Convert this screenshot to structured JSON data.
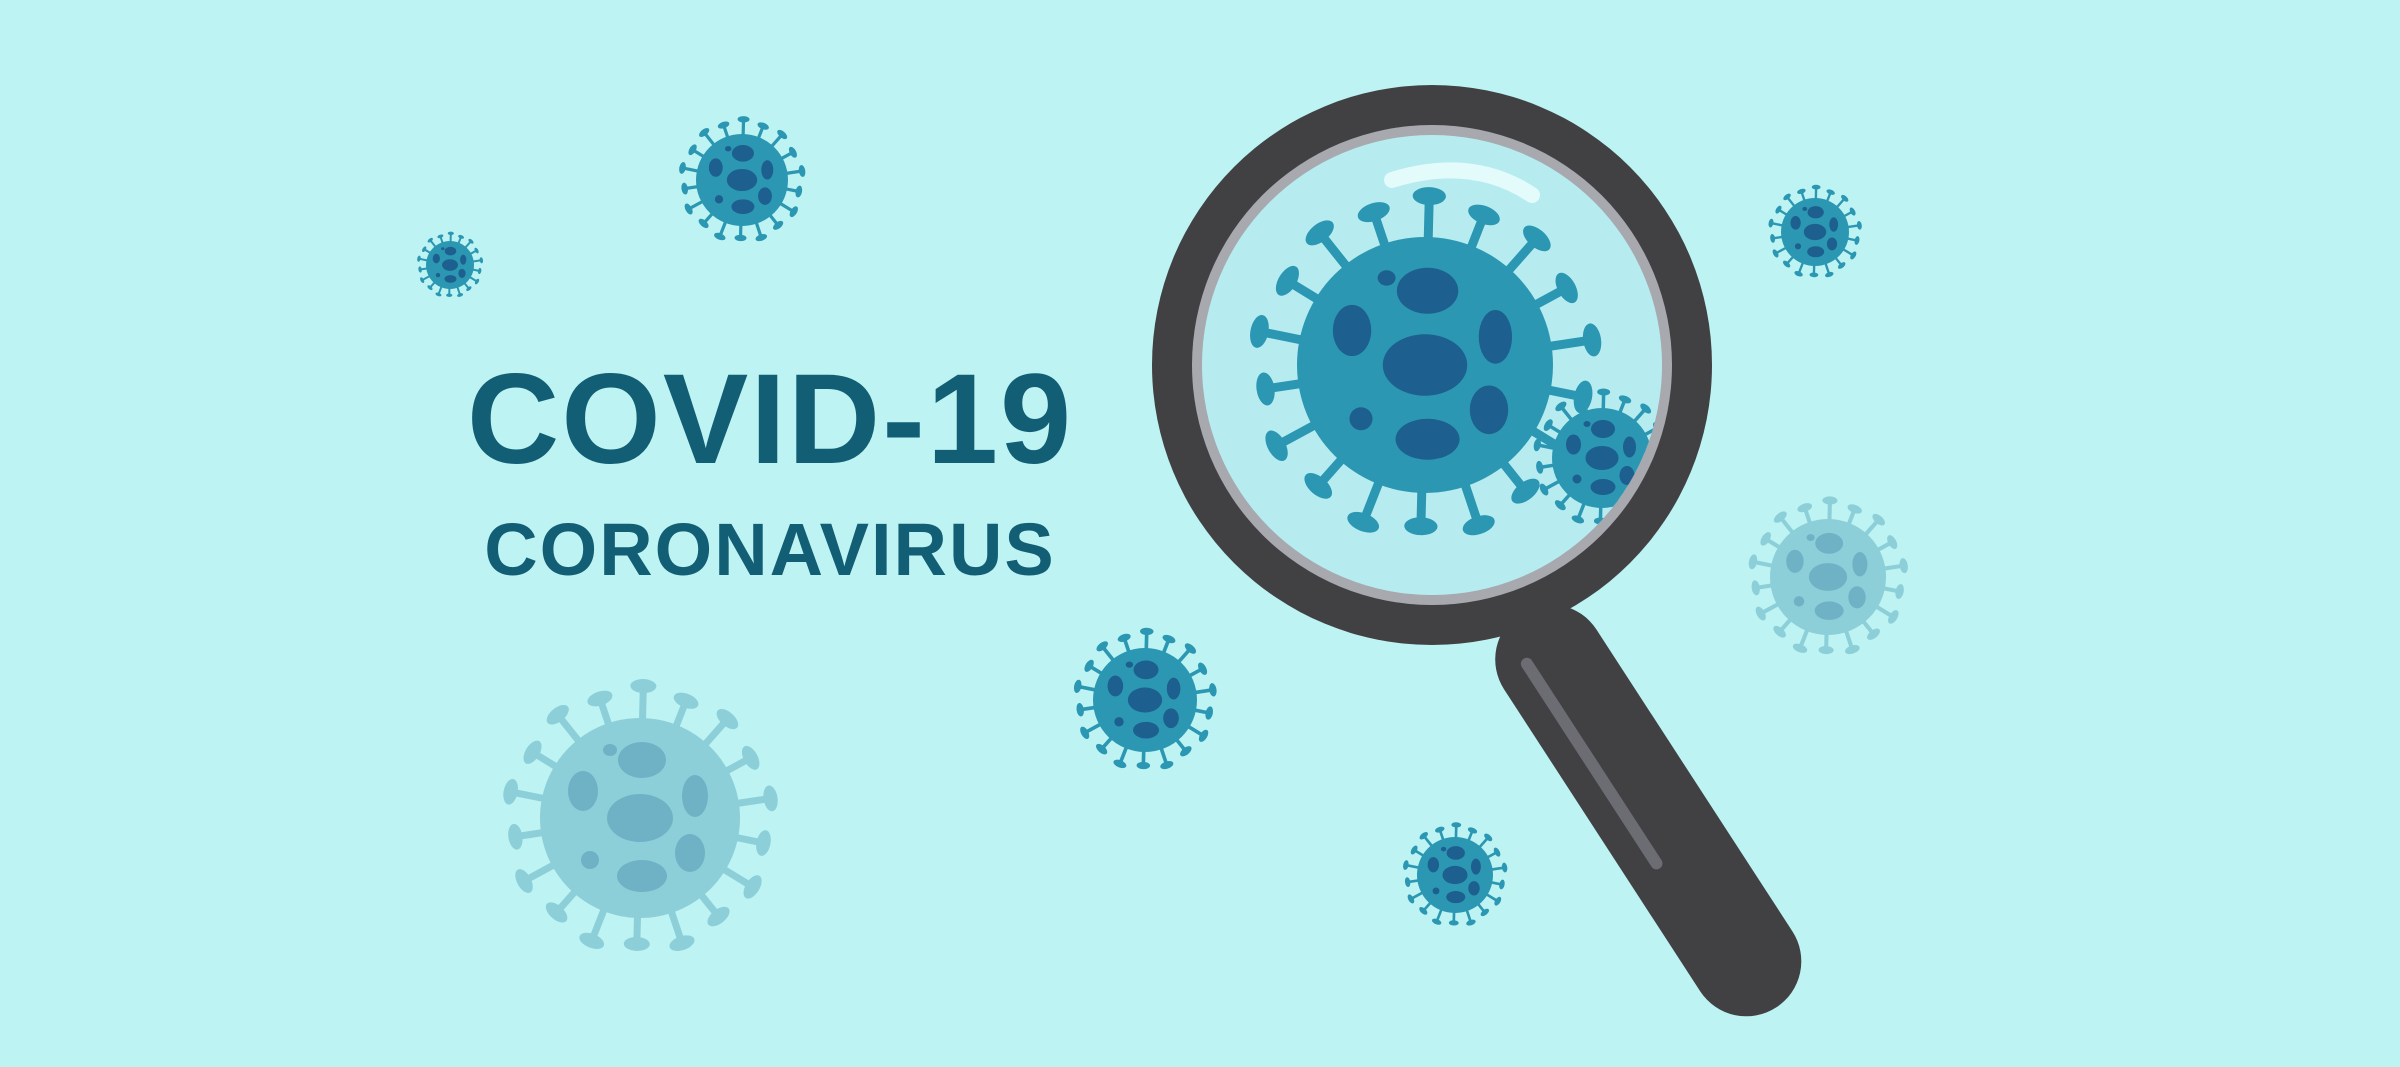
{
  "banner": {
    "title": "COVID-19",
    "subtitle": "CORONAVIRUS"
  },
  "colors": {
    "background": "#bdf3f2",
    "text": "#125e75",
    "virus_body": "#2b97b3",
    "virus_spots": "#1d5f8e",
    "virus_faded": "#8ccfd8",
    "virus_faded_spots": "#6fb2c5",
    "magnifier_frame": "#414144",
    "magnifier_lens": "#b6ecf0",
    "magnifier_rim": "#a7a9ae"
  },
  "icons": [
    "coronavirus-icon",
    "magnifying-glass-icon"
  ]
}
